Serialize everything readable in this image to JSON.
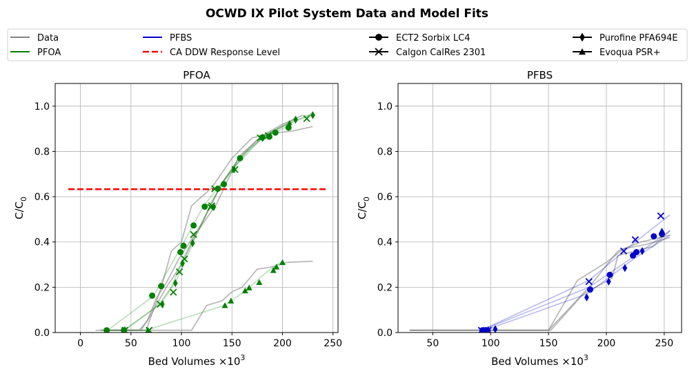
{
  "figure": {
    "title": "OCWD IX Pilot System Data and Model Fits"
  },
  "legend": {
    "placement": "top",
    "entries": [
      {
        "label": "Data",
        "style": "line",
        "color": "#808080"
      },
      {
        "label": "PFOA",
        "style": "line",
        "color": "#008000"
      },
      {
        "label": "PFBS",
        "style": "line",
        "color": "#0000cc"
      },
      {
        "label": "CA DDW Response Level",
        "style": "dashed",
        "color": "#ff0000"
      },
      {
        "label": "ECT2 Sorbix LC4",
        "style": "marker",
        "marker": "circle",
        "color": "#000000"
      },
      {
        "label": "Calgon CalRes 2301",
        "style": "marker",
        "marker": "x",
        "color": "#000000"
      },
      {
        "label": "Purofine PFA694E",
        "style": "marker",
        "marker": "diamond",
        "color": "#000000"
      },
      {
        "label": "Evoqua PSR+",
        "style": "marker",
        "marker": "triangle",
        "color": "#000000"
      }
    ]
  },
  "chart_data": [
    {
      "type": "scatter",
      "title": "PFOA",
      "xlabel": "Bed Volumes ×10",
      "xlabel_sup": "3",
      "ylabel": "C/C",
      "ylabel_sub": "0",
      "xlim": [
        -25,
        255
      ],
      "ylim": [
        0,
        1.1
      ],
      "xticks": [
        0,
        50,
        100,
        150,
        200,
        250
      ],
      "yticks": [
        0.0,
        0.2,
        0.4,
        0.6,
        0.8,
        1.0
      ],
      "grid": true,
      "reference_line": {
        "name": "CA DDW Response Level",
        "y": 0.633,
        "x": [
          -12,
          243
        ],
        "color": "#ff0000"
      },
      "series": [
        {
          "kind": "data",
          "color": "#808080",
          "x": [
            15,
            45,
            65,
            80,
            90,
            100,
            110,
            130,
            150,
            170,
            190,
            210,
            230
          ],
          "y": [
            0.01,
            0.01,
            0.01,
            0.2,
            0.36,
            0.4,
            0.56,
            0.64,
            0.77,
            0.86,
            0.88,
            0.89,
            0.91
          ]
        },
        {
          "kind": "data",
          "color": "#808080",
          "x": [
            20,
            40,
            58,
            66,
            75,
            85,
            98,
            120,
            140,
            160,
            180,
            200,
            220
          ],
          "y": [
            0.01,
            0.01,
            0.01,
            0.05,
            0.15,
            0.22,
            0.33,
            0.48,
            0.66,
            0.79,
            0.87,
            0.92,
            0.96
          ]
        },
        {
          "kind": "data",
          "color": "#808080",
          "x": [
            25,
            45,
            60,
            70,
            85,
            100,
            115,
            135,
            155,
            175,
            195,
            215
          ],
          "y": [
            0.01,
            0.01,
            0.01,
            0.08,
            0.2,
            0.3,
            0.44,
            0.57,
            0.76,
            0.85,
            0.9,
            0.95
          ]
        },
        {
          "kind": "data",
          "color": "#808080",
          "x": [
            20,
            60,
            80,
            110,
            125,
            140,
            150,
            160,
            175,
            190,
            205,
            230
          ],
          "y": [
            0.01,
            0.01,
            0.01,
            0.01,
            0.12,
            0.14,
            0.18,
            0.2,
            0.28,
            0.29,
            0.31,
            0.315
          ]
        },
        {
          "kind": "fit",
          "color": "#008000",
          "x": [
            27,
            72,
            100,
            122,
            140,
            160,
            180,
            205
          ],
          "y": [
            0.01,
            0.16,
            0.38,
            0.56,
            0.66,
            0.78,
            0.86,
            0.91
          ]
        },
        {
          "kind": "fit",
          "color": "#008000",
          "x": [
            43,
            77,
            90,
            103,
            122,
            140,
            165,
            185,
            210,
            228
          ],
          "y": [
            0.01,
            0.12,
            0.2,
            0.34,
            0.5,
            0.66,
            0.8,
            0.88,
            0.93,
            0.96
          ]
        },
        {
          "kind": "fit",
          "color": "#008000",
          "x": [
            44,
            80,
            95,
            112,
            130,
            150,
            180,
            205,
            230
          ],
          "y": [
            0.01,
            0.13,
            0.23,
            0.4,
            0.58,
            0.72,
            0.86,
            0.92,
            0.97
          ]
        },
        {
          "kind": "fit",
          "color": "#008000",
          "x": [
            25,
            65,
            100,
            143,
            165,
            185,
            200
          ],
          "y": [
            0.01,
            0.01,
            0.06,
            0.12,
            0.19,
            0.27,
            0.315
          ]
        },
        {
          "kind": "points",
          "marker": "circle",
          "color": "#008000",
          "x": [
            26,
            43,
            71,
            80,
            99,
            102,
            112,
            123,
            136,
            142,
            158,
            180,
            187,
            193,
            206
          ],
          "y": [
            0.01,
            0.01,
            0.163,
            0.205,
            0.355,
            0.383,
            0.473,
            0.556,
            0.635,
            0.655,
            0.77,
            0.862,
            0.865,
            0.883,
            0.905
          ]
        },
        {
          "kind": "points",
          "marker": "x",
          "color": "#008000",
          "x": [
            44,
            68,
            79,
            92,
            98,
            103,
            112,
            129,
            130,
            133,
            153,
            178,
            186,
            224
          ],
          "y": [
            0.01,
            0.01,
            0.125,
            0.178,
            0.268,
            0.325,
            0.433,
            0.553,
            0.56,
            0.635,
            0.72,
            0.86,
            0.87,
            0.945
          ]
        },
        {
          "kind": "points",
          "marker": "diamond",
          "color": "#008000",
          "x": [
            44,
            81,
            94,
            101,
            111,
            132,
            152,
            180,
            207,
            213,
            230
          ],
          "y": [
            0.01,
            0.125,
            0.218,
            0.305,
            0.395,
            0.555,
            0.72,
            0.86,
            0.92,
            0.94,
            0.96
          ]
        },
        {
          "kind": "points",
          "marker": "triangle",
          "color": "#008000",
          "x": [
            26,
            67,
            143,
            149,
            163,
            167,
            177,
            191,
            194,
            200
          ],
          "y": [
            0.01,
            0.01,
            0.12,
            0.14,
            0.185,
            0.198,
            0.222,
            0.275,
            0.29,
            0.31
          ]
        }
      ]
    },
    {
      "type": "scatter",
      "title": "PFBS",
      "xlabel": "Bed Volumes ×10",
      "xlabel_sup": "3",
      "ylabel": "C/C",
      "ylabel_sub": "0",
      "xlim": [
        20,
        265
      ],
      "ylim": [
        0,
        1.1
      ],
      "xticks": [
        50,
        100,
        150,
        200,
        250
      ],
      "yticks": [
        0.0,
        0.2,
        0.4,
        0.6,
        0.8,
        1.0
      ],
      "grid": true,
      "series": [
        {
          "kind": "data",
          "color": "#808080",
          "x": [
            30,
            150,
            175,
            200,
            215,
            235,
            255
          ],
          "y": [
            0.01,
            0.01,
            0.23,
            0.31,
            0.37,
            0.39,
            0.42
          ]
        },
        {
          "kind": "data",
          "color": "#808080",
          "x": [
            30,
            152,
            180,
            205,
            210,
            240,
            255
          ],
          "y": [
            0.01,
            0.01,
            0.17,
            0.24,
            0.34,
            0.38,
            0.45
          ]
        },
        {
          "kind": "data",
          "color": "#808080",
          "x": [
            30,
            150,
            185,
            210,
            230,
            255
          ],
          "y": [
            0.01,
            0.01,
            0.2,
            0.36,
            0.4,
            0.43
          ]
        },
        {
          "kind": "fit",
          "color": "#0000cc",
          "x": [
            92,
            185,
            225,
            255
          ],
          "y": [
            0.01,
            0.23,
            0.4,
            0.52
          ]
        },
        {
          "kind": "fit",
          "color": "#0000cc",
          "x": [
            92,
            185,
            225,
            255
          ],
          "y": [
            0.01,
            0.2,
            0.34,
            0.45
          ]
        },
        {
          "kind": "fit",
          "color": "#0000cc",
          "x": [
            95,
            183,
            225,
            255
          ],
          "y": [
            0.01,
            0.17,
            0.33,
            0.43
          ]
        },
        {
          "kind": "points",
          "marker": "circle",
          "color": "#0000cc",
          "x": [
            93,
            97,
            186,
            203,
            223,
            226,
            241,
            248
          ],
          "y": [
            0.01,
            0.01,
            0.19,
            0.255,
            0.34,
            0.355,
            0.425,
            0.435
          ]
        },
        {
          "kind": "points",
          "marker": "x",
          "color": "#0000cc",
          "x": [
            92,
            98,
            185,
            215,
            225,
            247
          ],
          "y": [
            0.01,
            0.01,
            0.225,
            0.36,
            0.41,
            0.515
          ]
        },
        {
          "kind": "points",
          "marker": "diamond",
          "color": "#0000cc",
          "x": [
            98,
            104,
            183,
            202,
            216,
            231,
            248
          ],
          "y": [
            0.01,
            0.015,
            0.155,
            0.225,
            0.285,
            0.36,
            0.445
          ]
        }
      ]
    }
  ]
}
